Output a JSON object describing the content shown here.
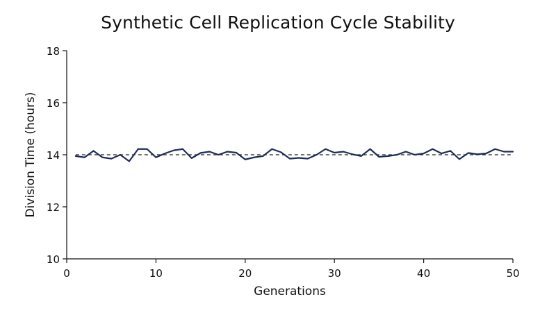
{
  "chart_data": {
    "type": "line",
    "title": "Synthetic Cell Replication Cycle Stability",
    "xlabel": "Generations",
    "ylabel": "Division Time (hours)",
    "xlim": [
      0,
      50
    ],
    "ylim": [
      10,
      18
    ],
    "xticks": [
      "0",
      "10",
      "20",
      "30",
      "40",
      "50"
    ],
    "yticks": [
      "10",
      "12",
      "14",
      "16",
      "18"
    ],
    "grid": false,
    "reference_line": {
      "y": 14.0,
      "style": "dashed",
      "color": "#222222"
    },
    "series": [
      {
        "color": "#1f2a5a",
        "x": [
          1,
          2,
          3,
          4,
          5,
          6,
          7,
          8,
          9,
          10,
          11,
          12,
          13,
          14,
          15,
          16,
          17,
          18,
          19,
          20,
          21,
          22,
          23,
          24,
          25,
          26,
          27,
          28,
          29,
          30,
          31,
          32,
          33,
          34,
          35,
          36,
          37,
          38,
          39,
          40,
          41,
          42,
          43,
          44,
          45,
          46,
          47,
          48,
          49,
          50
        ],
        "values": [
          13.95,
          13.9,
          14.15,
          13.9,
          13.85,
          14.0,
          13.75,
          14.22,
          14.22,
          13.9,
          14.05,
          14.17,
          14.22,
          13.87,
          14.07,
          14.12,
          14.0,
          14.12,
          14.08,
          13.82,
          13.9,
          13.95,
          14.22,
          14.1,
          13.85,
          13.88,
          13.85,
          14.0,
          14.22,
          14.08,
          14.12,
          14.02,
          13.95,
          14.22,
          13.92,
          13.95,
          14.0,
          14.12,
          14.0,
          14.05,
          14.22,
          14.05,
          14.15,
          13.83,
          14.07,
          14.02,
          14.05,
          14.22,
          14.12,
          14.12
        ]
      }
    ]
  }
}
